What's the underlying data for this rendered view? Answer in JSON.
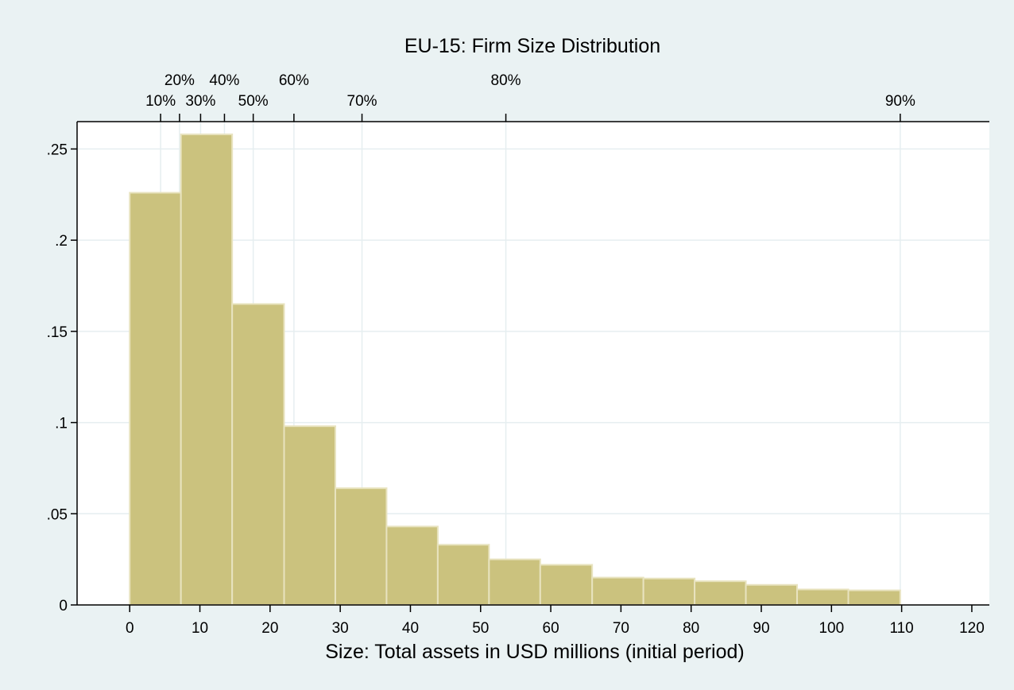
{
  "chart_data": {
    "type": "bar",
    "title": "EU-15: Firm Size Distribution",
    "xlabel": "Size: Total assets in USD millions (initial period)",
    "ylabel": "",
    "xlim": [
      -7.5,
      122.5
    ],
    "ylim": [
      0,
      0.265
    ],
    "x_ticks": [
      0,
      10,
      20,
      30,
      40,
      50,
      60,
      70,
      80,
      90,
      100,
      110,
      120
    ],
    "x_tick_labels": [
      "0",
      "10",
      "20",
      "30",
      "40",
      "50",
      "60",
      "70",
      "80",
      "90",
      "100",
      "110",
      "120"
    ],
    "y_ticks": [
      0,
      0.05,
      0.1,
      0.15,
      0.2,
      0.25
    ],
    "y_tick_labels": [
      "0",
      ".05",
      ".1",
      ".15",
      ".2",
      ".25"
    ],
    "bin_edges": [
      0,
      7.3,
      14.6,
      22.0,
      29.3,
      36.6,
      43.9,
      51.2,
      58.5,
      65.9,
      73.2,
      80.5,
      87.8,
      95.1,
      102.4,
      109.8
    ],
    "values": [
      0.226,
      0.258,
      0.165,
      0.098,
      0.064,
      0.043,
      0.033,
      0.025,
      0.022,
      0.015,
      0.0145,
      0.013,
      0.011,
      0.0085,
      0.008
    ],
    "percentiles": [
      {
        "label": "10%",
        "x": 4.4
      },
      {
        "label": "20%",
        "x": 7.1
      },
      {
        "label": "30%",
        "x": 10.1
      },
      {
        "label": "40%",
        "x": 13.5
      },
      {
        "label": "50%",
        "x": 17.6
      },
      {
        "label": "60%",
        "x": 23.4
      },
      {
        "label": "70%",
        "x": 33.1
      },
      {
        "label": "80%",
        "x": 53.6
      },
      {
        "label": "90%",
        "x": 109.8
      }
    ],
    "grid": true,
    "legend": "none",
    "colors": {
      "bar_fill": "#cbc27e",
      "bar_stroke": "#e8e3bf",
      "plot_bg": "#ffffff",
      "outer_bg": "#eaf2f3",
      "grid": "#e6eef0",
      "axis": "#000000"
    }
  }
}
